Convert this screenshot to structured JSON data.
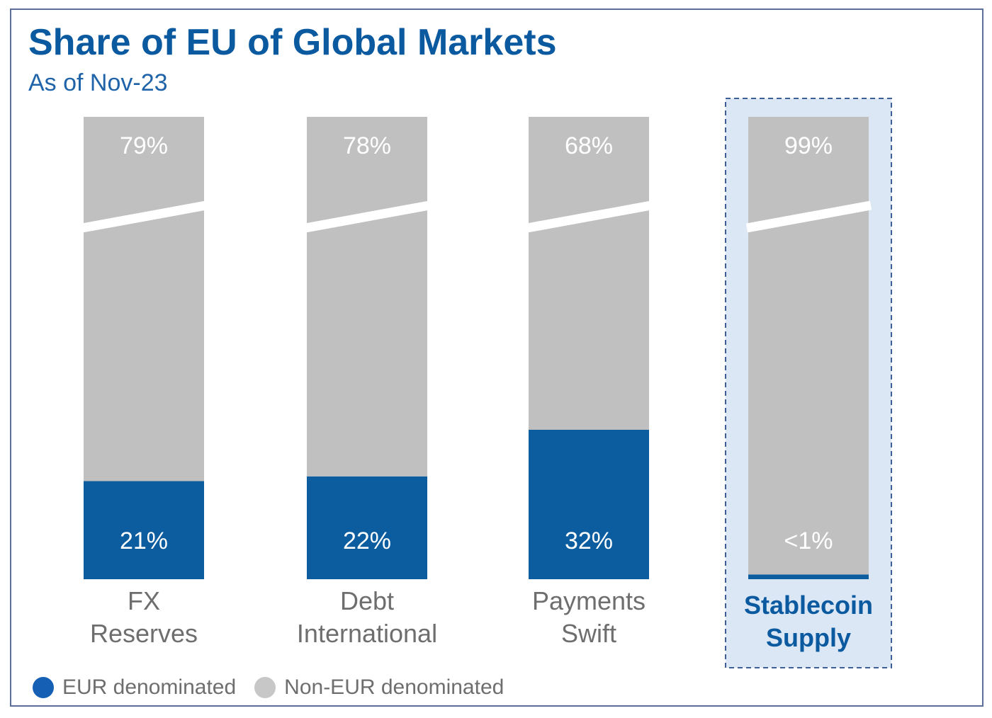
{
  "title": "Share of EU of Global Markets",
  "subtitle": "As of Nov-23",
  "colors": {
    "eur": "#0b5da0",
    "non_eur": "#c0c0c0",
    "highlight_bg": "#dbe7f5",
    "highlight_border": "#3d5f95"
  },
  "legend": [
    {
      "label": "EUR denominated",
      "color": "#1560b5"
    },
    {
      "label": "Non-EUR denominated",
      "color": "#c7c7c7"
    }
  ],
  "chart_data": {
    "type": "bar",
    "stacked": true,
    "axis_break": true,
    "categories": [
      {
        "lines": [
          "FX",
          "Reserves"
        ],
        "highlight": false
      },
      {
        "lines": [
          "Debt",
          "International"
        ],
        "highlight": false
      },
      {
        "lines": [
          "Payments",
          "Swift"
        ],
        "highlight": false
      },
      {
        "lines": [
          "Stablecoin",
          "Supply"
        ],
        "highlight": true
      }
    ],
    "series": [
      {
        "name": "EUR denominated",
        "values": [
          21,
          22,
          32,
          1
        ],
        "labels": [
          "21%",
          "22%",
          "32%",
          "<1%"
        ]
      },
      {
        "name": "Non-EUR denominated",
        "values": [
          79,
          78,
          68,
          99
        ],
        "labels": [
          "79%",
          "78%",
          "68%",
          "99%"
        ]
      }
    ],
    "ylim": [
      0,
      100
    ],
    "grid": false,
    "legend_position": "bottom-left"
  }
}
